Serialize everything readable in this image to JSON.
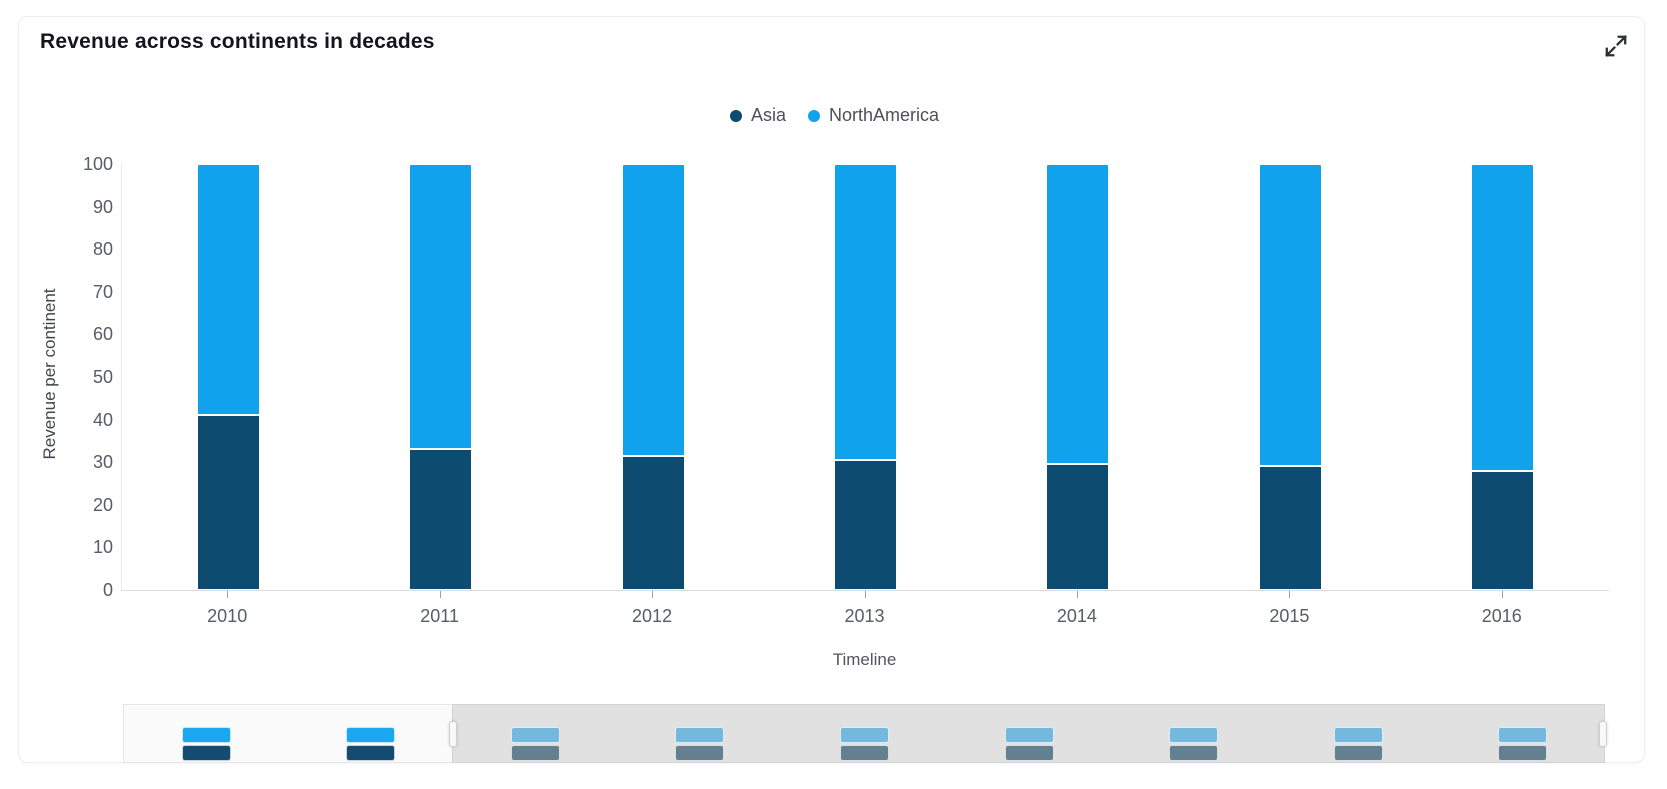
{
  "card": {
    "title": "Revenue across continents in decades"
  },
  "toolbar": {
    "expand_icon": "expand-arrows-icon"
  },
  "legend": {
    "items": [
      {
        "label": "Asia",
        "color": "#0d4b70"
      },
      {
        "label": "NorthAmerica",
        "color": "#11a2ee"
      }
    ]
  },
  "chart_data": {
    "type": "bar",
    "stacked": true,
    "title": "Revenue across continents in decades",
    "categories": [
      "2010",
      "2011",
      "2012",
      "2013",
      "2014",
      "2015",
      "2016"
    ],
    "series": [
      {
        "name": "Asia",
        "color": "#0d4b70",
        "values": [
          41,
          33,
          31.5,
          30.5,
          29.5,
          29,
          28
        ]
      },
      {
        "name": "NorthAmerica",
        "color": "#11a2ee",
        "values": [
          59,
          67,
          68.5,
          69.5,
          70.5,
          71,
          72
        ]
      }
    ],
    "totals": [
      100,
      100,
      100,
      100,
      100,
      100,
      100
    ],
    "xlabel": "Timeline",
    "ylabel": "Revenue per continent",
    "ylim": [
      0,
      100
    ],
    "yticks": [
      0,
      10,
      20,
      30,
      40,
      50,
      60,
      70,
      80,
      90,
      100
    ],
    "grid": false,
    "legend_position": "top-center"
  },
  "brush": {
    "mini_bar_count": 9,
    "selected_window": {
      "start_bar_index": 2,
      "end_bar_index": 8
    },
    "colors": {
      "vivid_top": "#1ba7ef",
      "vivid_bottom": "#134c70",
      "muted_top": "#74b8de",
      "muted_bottom": "#647f90",
      "window_fill": "#e1e1e1",
      "track_fill": "#fafafa"
    }
  }
}
